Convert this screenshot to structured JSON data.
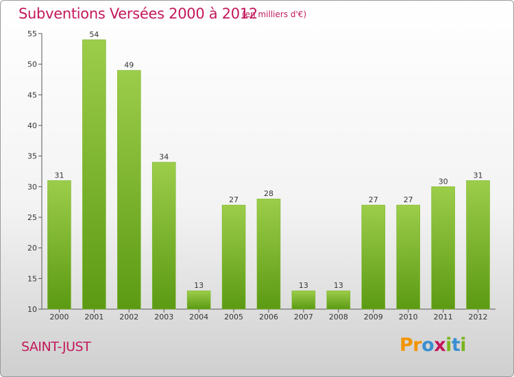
{
  "header": {
    "title": "Subventions Versées 2000 à 2012",
    "unit": "(en milliers d'€)"
  },
  "footer": {
    "commune": "SAINT-JUST",
    "logo": [
      "P",
      "r",
      "o",
      "x",
      "i",
      "t",
      "i"
    ]
  },
  "colors": {
    "accent": "#c2185b",
    "bar_top": "#9ccd4a",
    "bar_bottom": "#5c9a14",
    "logo": [
      "#f29400",
      "#f29400",
      "#3a8fd0",
      "#c2185b",
      "#7ab51d",
      "#3a8fd0",
      "#7ab51d"
    ]
  },
  "chart_data": {
    "type": "bar",
    "categories": [
      "2000",
      "2001",
      "2002",
      "2003",
      "2004",
      "2005",
      "2006",
      "2007",
      "2008",
      "2009",
      "2010",
      "2011",
      "2012"
    ],
    "values": [
      31,
      54,
      49,
      34,
      13,
      27,
      28,
      13,
      13,
      27,
      27,
      30,
      31
    ],
    "ylim": [
      10,
      55
    ],
    "yticks": [
      10,
      15,
      20,
      25,
      30,
      35,
      40,
      45,
      50,
      55
    ],
    "grid": false,
    "data_labels": true
  }
}
